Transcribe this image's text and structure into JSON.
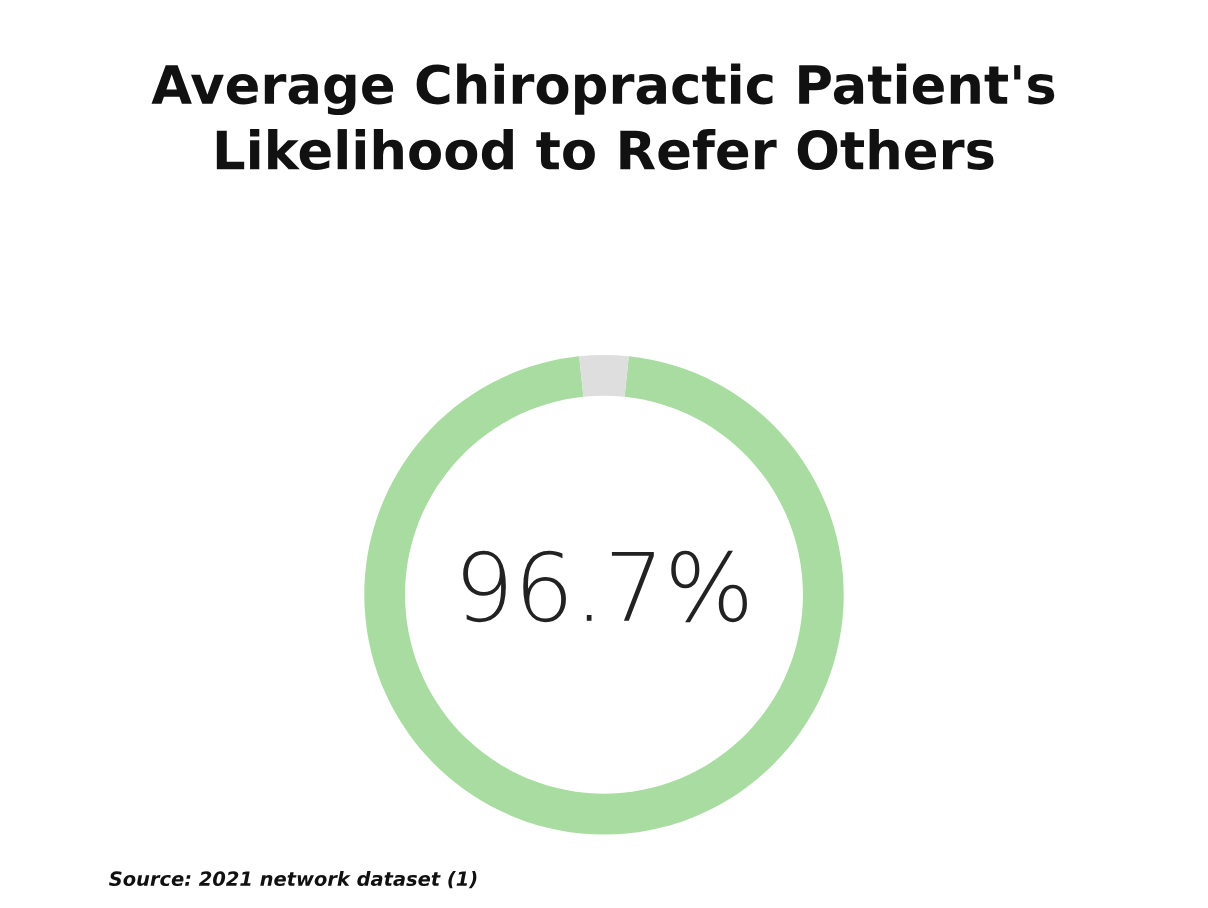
{
  "chart_data": {
    "type": "donut",
    "title": "Average Chiropractic Patient's\nLikelihood to Refer Others",
    "categories": [
      null,
      null
    ],
    "values": [
      96.7,
      3.3
    ],
    "colors": [
      "#a8dca0",
      "#dedede"
    ],
    "value_labels": [
      "96.7%",
      null
    ],
    "annotations": [
      "Source: 2021 network dataset (1)"
    ]
  }
}
